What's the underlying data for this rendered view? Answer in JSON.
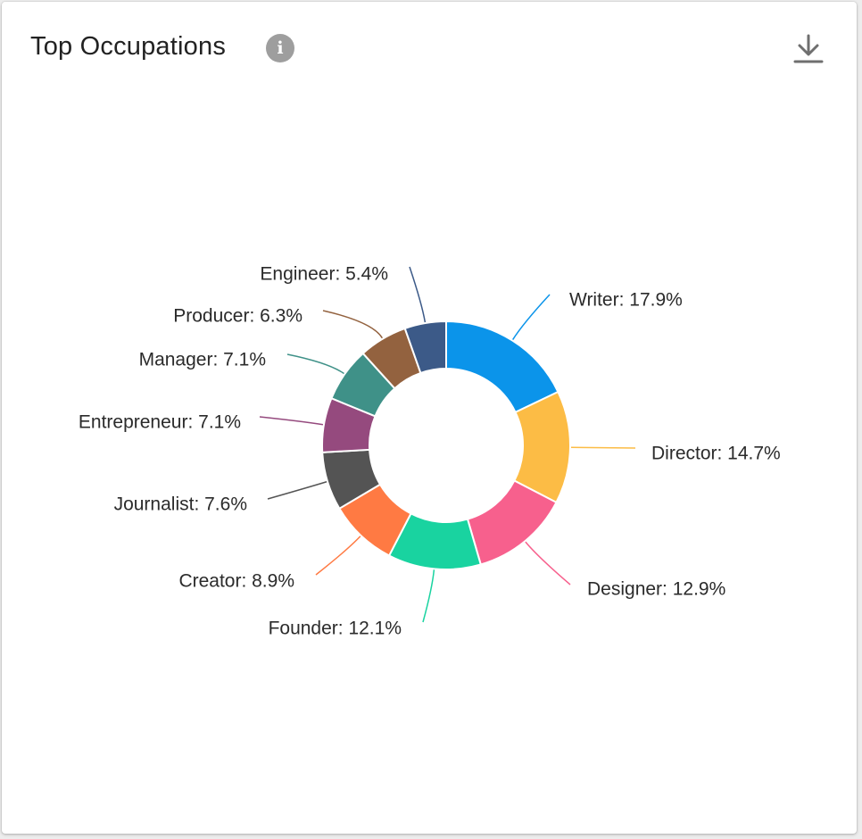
{
  "card": {
    "title": "Top Occupations",
    "info_glyph": "i",
    "info_icon": "info-icon",
    "download_icon": "download-icon"
  },
  "chart_data": {
    "type": "pie",
    "variant": "donut",
    "unit": "%",
    "categories": [
      "Writer",
      "Director",
      "Designer",
      "Founder",
      "Creator",
      "Journalist",
      "Entrepreneur",
      "Manager",
      "Producer",
      "Engineer"
    ],
    "values": [
      17.9,
      14.7,
      12.9,
      12.1,
      8.9,
      7.6,
      7.1,
      7.1,
      6.3,
      5.4
    ],
    "labels": [
      "Writer: 17.9%",
      "Director: 14.7%",
      "Designer: 12.9%",
      "Founder: 12.1%",
      "Creator: 8.9%",
      "Journalist: 7.6%",
      "Entrepreneur: 7.1%",
      "Manager: 7.1%",
      "Producer: 6.3%",
      "Engineer: 5.4%"
    ],
    "colors": [
      "#0b94ea",
      "#fcbc45",
      "#f7608d",
      "#19d3a0",
      "#ff7a43",
      "#545454",
      "#954a7e",
      "#3f9188",
      "#93623f",
      "#3c5a88"
    ],
    "title": "",
    "legend": "none"
  }
}
